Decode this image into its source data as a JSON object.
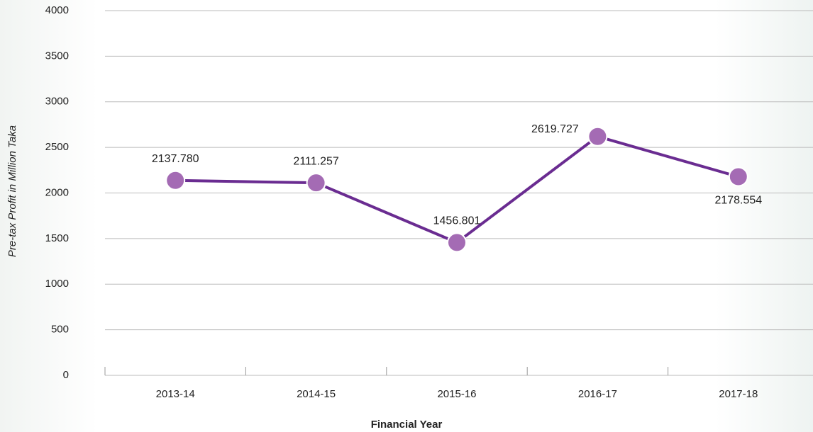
{
  "chart_data": {
    "type": "line",
    "x_label": "Financial Year",
    "y_label": "Pre-tax Profit in Million Taka",
    "categories": [
      "2013-14",
      "2014-15",
      "2015-16",
      "2016-17",
      "2017-18"
    ],
    "series": [
      {
        "name": "Pre-tax Profit",
        "color": "#6a2c91",
        "marker_color": "#a46bb4",
        "values": [
          2137.78,
          2111.257,
          1456.801,
          2619.727,
          2178.554
        ],
        "value_labels": [
          "2137.780",
          "2111.257",
          "1456.801",
          "2619.727",
          "2178.554"
        ]
      }
    ],
    "ylim": [
      0,
      4000
    ],
    "yticks": [
      0,
      500,
      1000,
      1500,
      2000,
      2500,
      3000,
      3500,
      4000
    ],
    "grid": true
  }
}
